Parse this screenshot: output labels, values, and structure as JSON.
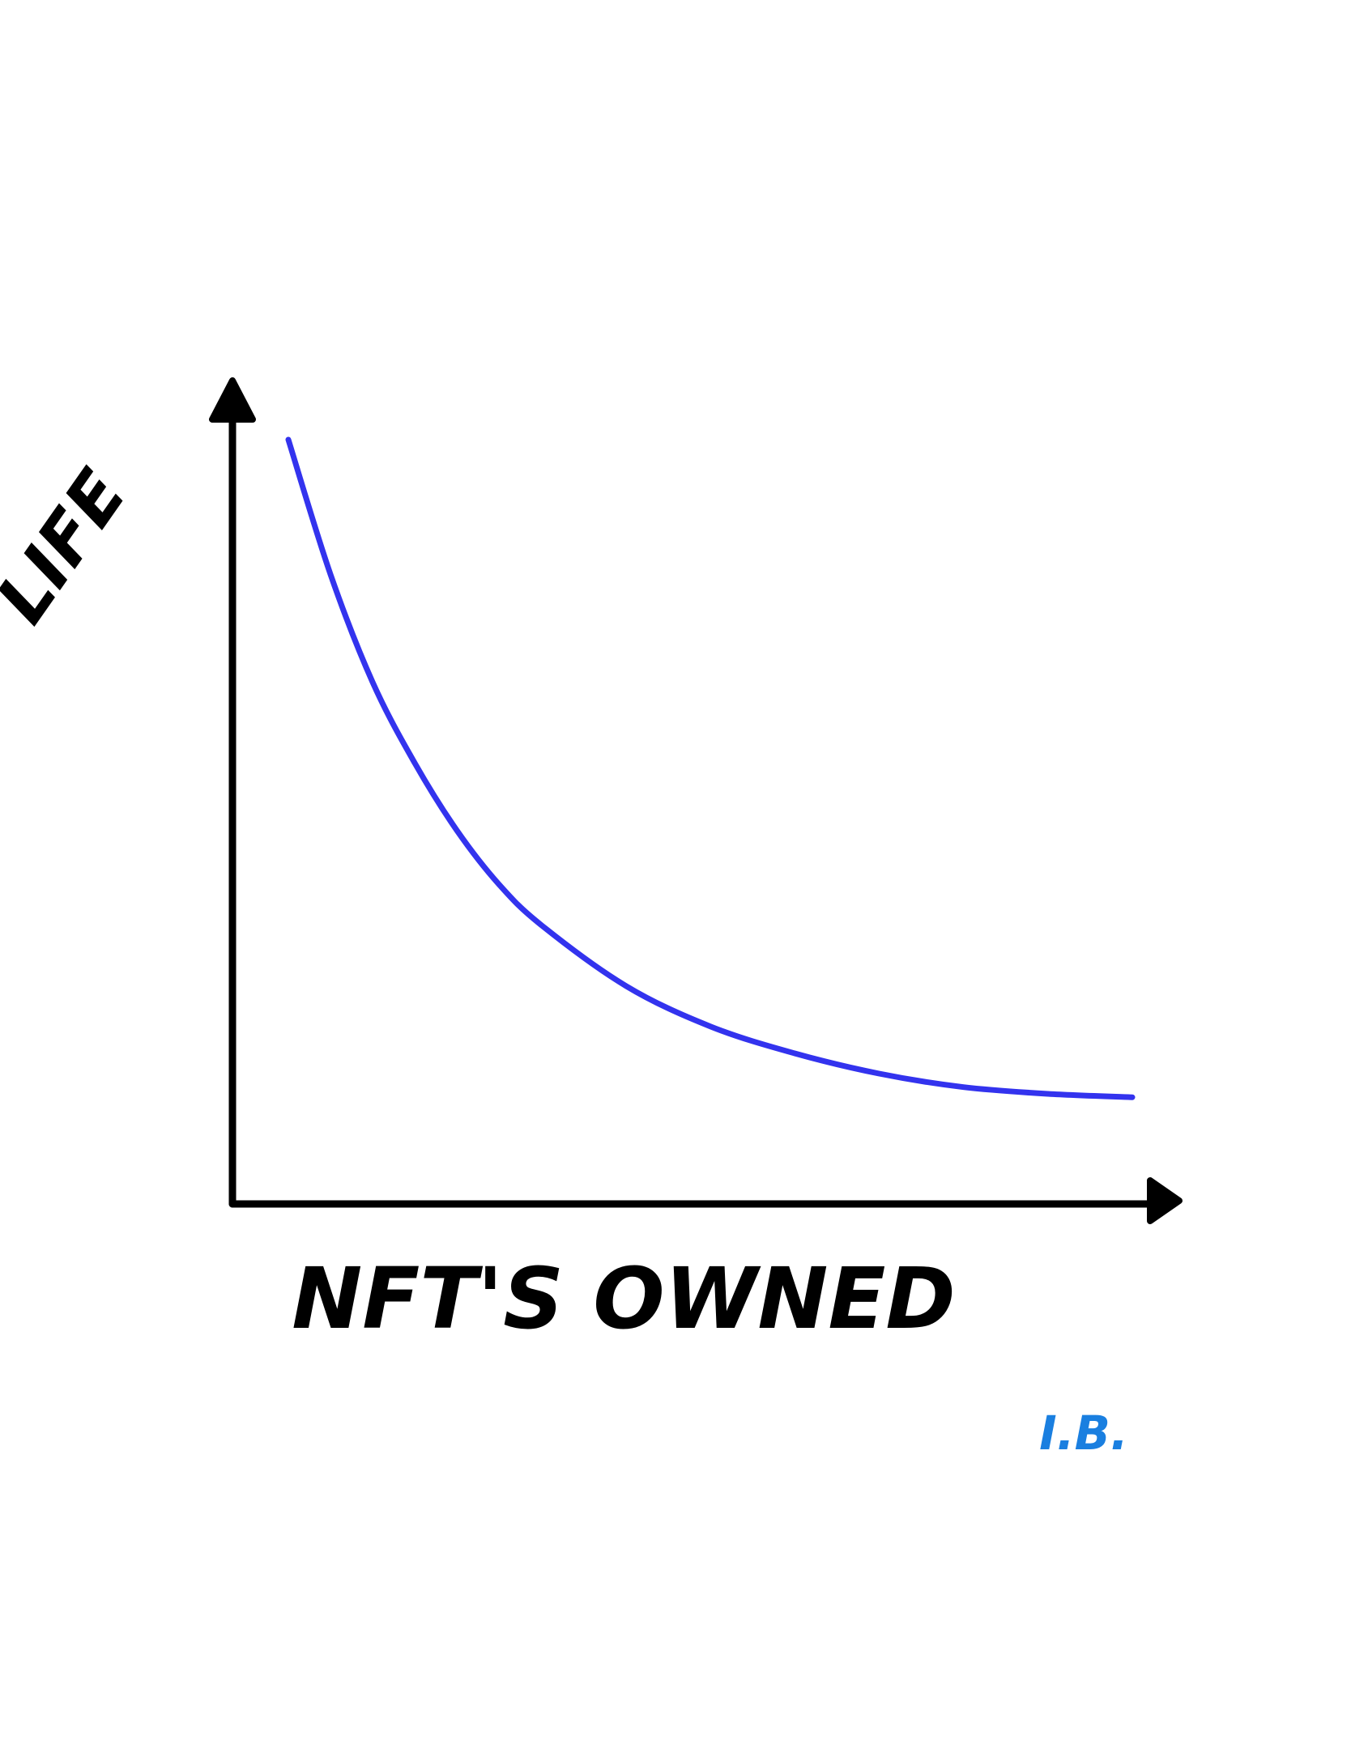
{
  "chart_data": {
    "type": "line",
    "xlabel": "NFT'S OWNED",
    "ylabel": "LIFE",
    "grid": false,
    "series": [
      {
        "points": [
          [
            0.0,
            1.0
          ],
          [
            0.05,
            0.8
          ],
          [
            0.1,
            0.64
          ],
          [
            0.15,
            0.52
          ],
          [
            0.2,
            0.42
          ],
          [
            0.25,
            0.34
          ],
          [
            0.3,
            0.28
          ],
          [
            0.4,
            0.19
          ],
          [
            0.5,
            0.13
          ],
          [
            0.6,
            0.09
          ],
          [
            0.7,
            0.06
          ],
          [
            0.8,
            0.04
          ],
          [
            0.9,
            0.03
          ],
          [
            1.0,
            0.025
          ]
        ]
      }
    ]
  },
  "signature": "I.B.",
  "colors": {
    "axis": "#000000",
    "curve": "#3333ee",
    "signature": "#1a7fe0",
    "background": "#ffffff"
  }
}
